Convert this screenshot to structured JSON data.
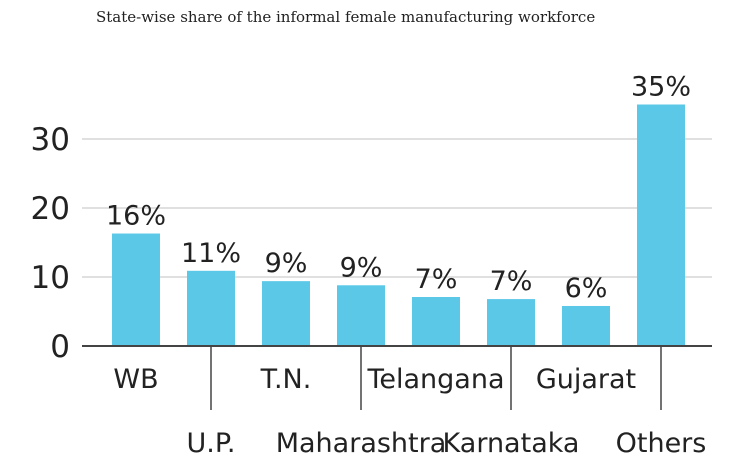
{
  "chart_data": {
    "type": "bar",
    "title": "State-wise share of the informal female manufacturing workforce",
    "xlabel": "",
    "ylabel": "",
    "categories": [
      "WB",
      "U.P.",
      "T.N.",
      "Maharashtra",
      "Telangana",
      "Karnataka",
      "Gujarat",
      "Others"
    ],
    "values": [
      16.3,
      10.9,
      9.4,
      8.8,
      7.1,
      6.8,
      5.8,
      35
    ],
    "data_labels": [
      "16%",
      "11%",
      "9%",
      "9%",
      "7%",
      "7%",
      "6%",
      "35%"
    ],
    "yticks": [
      "0",
      "10",
      "20",
      "30"
    ],
    "ylim": [
      0,
      35
    ],
    "grid": true,
    "legend": "none",
    "bar_color": "#5bc8e8",
    "grid_color": "#d6d6d6",
    "axis_color": "#444444"
  }
}
